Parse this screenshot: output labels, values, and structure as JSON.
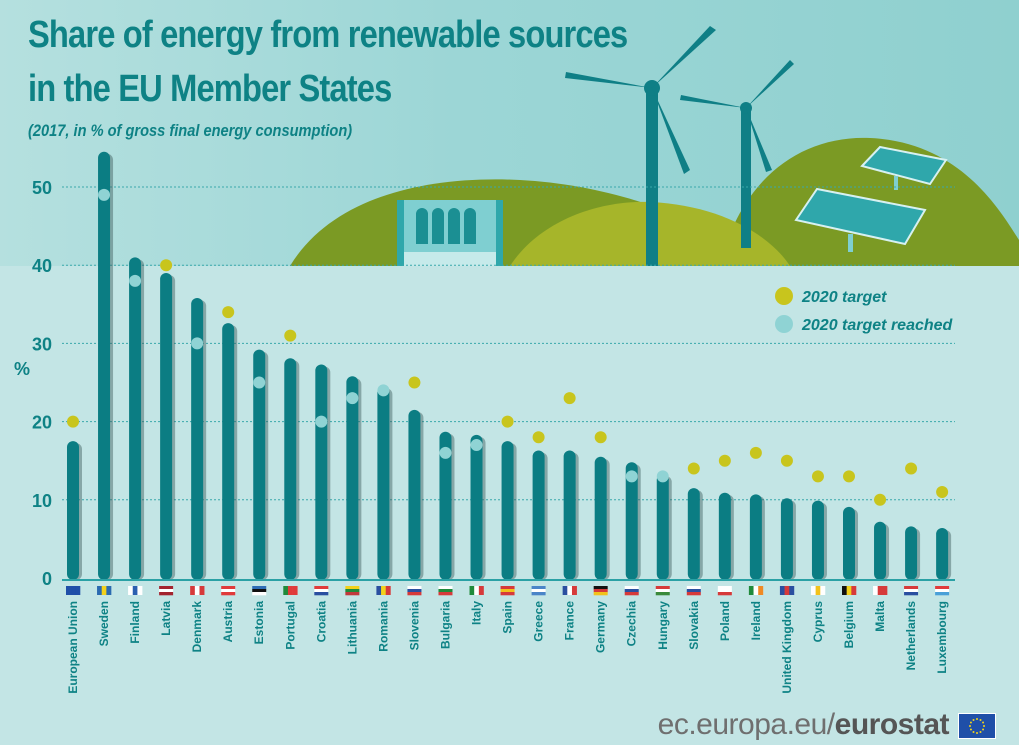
{
  "header": {
    "title_line1": "Share of energy from renewable sources",
    "title_line2": "in the EU Member States",
    "subtitle": "(2017, in % of gross final energy consumption)"
  },
  "footer": {
    "url_prefix": "ec.europa.eu/",
    "url_brand": "eurostat",
    "logo_icon": "eu-flag-icon"
  },
  "colors": {
    "bar": "#0b7d83",
    "target": "#c8c51d",
    "target_reached": "#8fd3d4",
    "text": "#0e8285",
    "hill_dark": "#7b9a24",
    "hill_light": "#a6b52a"
  },
  "chart_data": {
    "type": "bar",
    "title": "Share of energy from renewable sources in the EU Member States",
    "subtitle": "(2017, in % of gross final energy consumption)",
    "xlabel": "",
    "ylabel": "%",
    "ylim": [
      0,
      55
    ],
    "yticks": [
      0,
      10,
      20,
      30,
      40,
      50
    ],
    "grid": true,
    "legend_position": "top-right",
    "legend": [
      {
        "label": "2020 target",
        "kind": "target"
      },
      {
        "label": "2020 target reached",
        "kind": "reached"
      }
    ],
    "categories": [
      "European Union",
      "Sweden",
      "Finland",
      "Latvia",
      "Denmark",
      "Austria",
      "Estonia",
      "Portugal",
      "Croatia",
      "Lithuania",
      "Romania",
      "Slovenia",
      "Bulgaria",
      "Italy",
      "Spain",
      "Greece",
      "France",
      "Germany",
      "Czechia",
      "Hungary",
      "Slovakia",
      "Poland",
      "Ireland",
      "United Kingdom",
      "Cyprus",
      "Belgium",
      "Malta",
      "Netherlands",
      "Luxembourg"
    ],
    "flag_icons": [
      "eu-flag-icon",
      "sweden-flag-icon",
      "finland-flag-icon",
      "latvia-flag-icon",
      "denmark-flag-icon",
      "austria-flag-icon",
      "estonia-flag-icon",
      "portugal-flag-icon",
      "croatia-flag-icon",
      "lithuania-flag-icon",
      "romania-flag-icon",
      "slovenia-flag-icon",
      "bulgaria-flag-icon",
      "italy-flag-icon",
      "spain-flag-icon",
      "greece-flag-icon",
      "france-flag-icon",
      "germany-flag-icon",
      "czechia-flag-icon",
      "hungary-flag-icon",
      "slovakia-flag-icon",
      "poland-flag-icon",
      "ireland-flag-icon",
      "uk-flag-icon",
      "cyprus-flag-icon",
      "belgium-flag-icon",
      "malta-flag-icon",
      "netherlands-flag-icon",
      "luxembourg-flag-icon"
    ],
    "series": [
      {
        "name": "Share 2017",
        "values": [
          17.5,
          54.5,
          41.0,
          39.0,
          35.8,
          32.6,
          29.2,
          28.1,
          27.3,
          25.8,
          24.5,
          21.5,
          18.7,
          18.3,
          17.5,
          16.3,
          16.3,
          15.5,
          14.8,
          13.3,
          11.5,
          10.9,
          10.7,
          10.2,
          9.9,
          9.1,
          7.2,
          6.6,
          6.4
        ]
      },
      {
        "name": "2020 target",
        "values": [
          20,
          49,
          38,
          40,
          30,
          34,
          25,
          31,
          20,
          23,
          24,
          25,
          16,
          17,
          20,
          18,
          23,
          18,
          13,
          13,
          14,
          15,
          16,
          15,
          13,
          13,
          10,
          14,
          11
        ]
      }
    ],
    "target_reached": [
      false,
      true,
      true,
      false,
      true,
      false,
      true,
      false,
      true,
      true,
      true,
      false,
      true,
      true,
      false,
      false,
      false,
      false,
      true,
      true,
      false,
      false,
      false,
      false,
      false,
      false,
      false,
      false,
      false
    ]
  }
}
